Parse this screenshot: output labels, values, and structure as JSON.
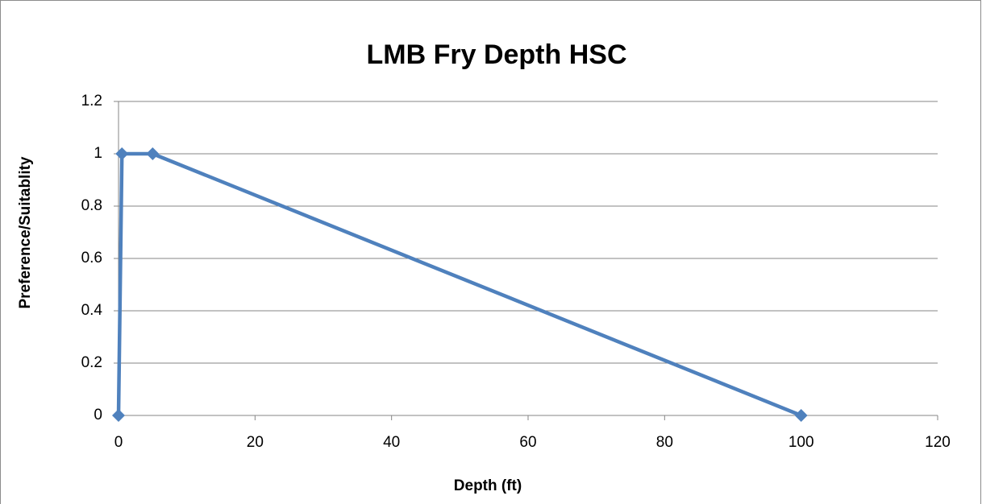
{
  "chart_data": {
    "type": "line",
    "title": "LMB Fry Depth HSC",
    "x_label": "Depth (ft)",
    "y_label": "Preference/Suitablity",
    "x": [
      0,
      0.5,
      5,
      100
    ],
    "values": [
      0,
      1,
      1,
      0
    ],
    "color": "#4f81bd",
    "xlim": [
      0,
      120
    ],
    "xticks": [
      0,
      20,
      40,
      60,
      80,
      100,
      120
    ],
    "ylim": [
      0,
      1.2
    ],
    "yticks": [
      0,
      0.2,
      0.4,
      0.6,
      0.8,
      1,
      1.2
    ],
    "grid": true
  }
}
